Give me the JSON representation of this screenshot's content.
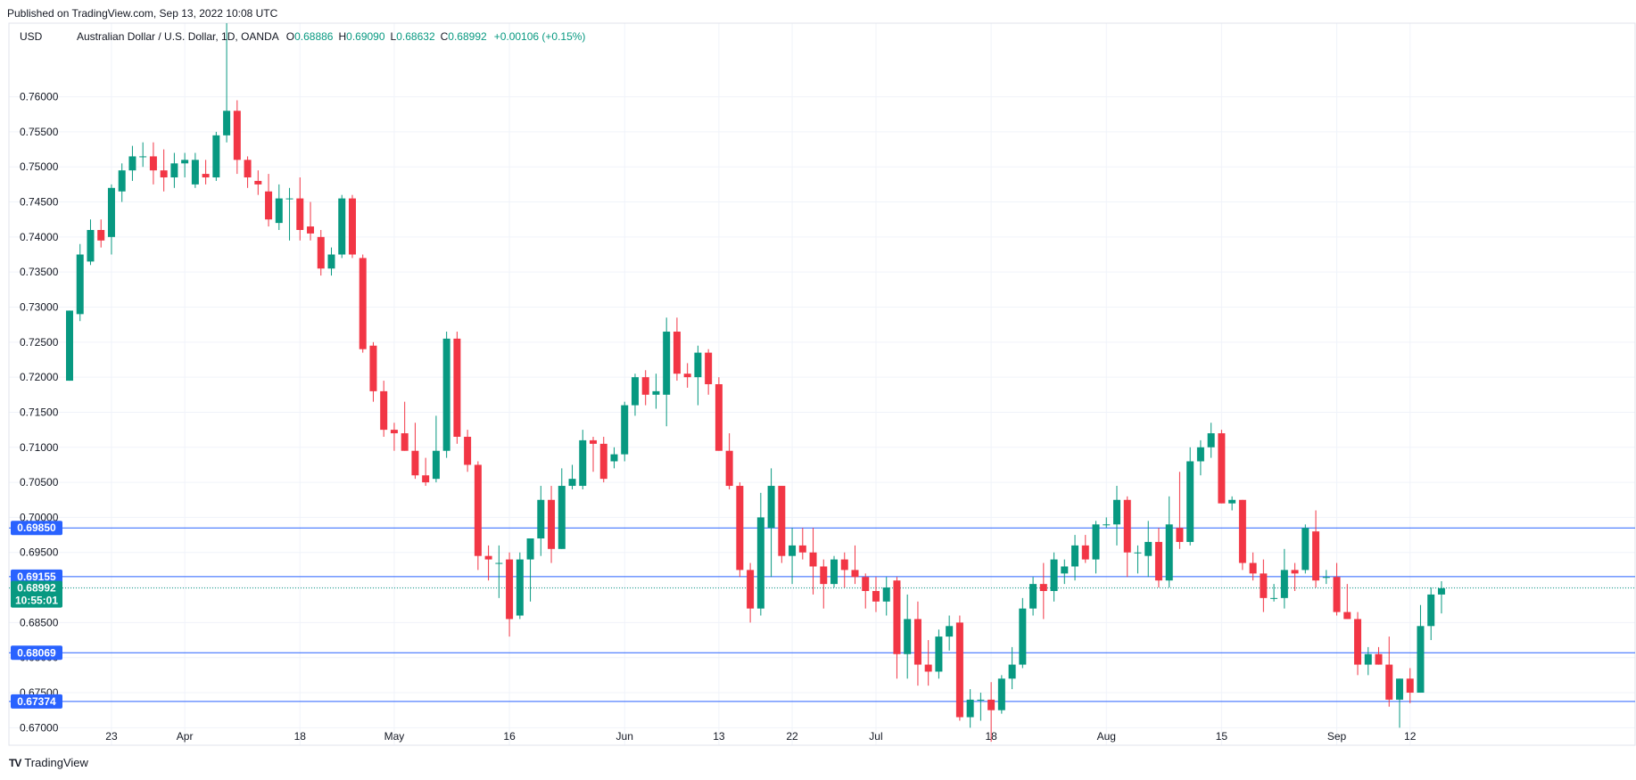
{
  "published": "Published on TradingView.com, Sep 13, 2022 10:08 UTC",
  "footer": {
    "brand": "TradingView",
    "mark": "TV"
  },
  "colors": {
    "up": "#089981",
    "down": "#f23645",
    "level_line": "#2962ff",
    "grid": "#f0f3fa",
    "badge_blue": "#2962ff",
    "badge_green": "#089981"
  },
  "header": {
    "currency": "USD",
    "symbol": "Australian Dollar / U.S. Dollar, 1D, OANDA",
    "o_label": "O",
    "o_value": "0.68886",
    "h_label": "H",
    "h_value": "0.69090",
    "l_label": "L",
    "l_value": "0.68632",
    "c_label": "C",
    "c_value": "0.68992",
    "change": "+0.00106 (+0.15%)"
  },
  "chart_data": {
    "type": "candlestick",
    "title": "Australian Dollar / U.S. Dollar, 1D, OANDA",
    "ylim": [
      0.6675,
      0.7705
    ],
    "y_ticks": [
      "0.67000",
      "0.67500",
      "0.68000",
      "0.68500",
      "0.69000",
      "0.69500",
      "0.70000",
      "0.70500",
      "0.71000",
      "0.71500",
      "0.72000",
      "0.72500",
      "0.73000",
      "0.73500",
      "0.74000",
      "0.74500",
      "0.75000",
      "0.75500",
      "0.76000"
    ],
    "x_labels": [
      {
        "label": "23",
        "index": 4
      },
      {
        "label": "Apr",
        "index": 11
      },
      {
        "label": "18",
        "index": 22
      },
      {
        "label": "May",
        "index": 31
      },
      {
        "label": "16",
        "index": 42
      },
      {
        "label": "Jun",
        "index": 53
      },
      {
        "label": "13",
        "index": 62
      },
      {
        "label": "22",
        "index": 69
      },
      {
        "label": "Jul",
        "index": 77
      },
      {
        "label": "18",
        "index": 88
      },
      {
        "label": "Aug",
        "index": 99
      },
      {
        "label": "15",
        "index": 110
      },
      {
        "label": "Sep",
        "index": 121
      },
      {
        "label": "12",
        "index": 128
      }
    ],
    "candles": [
      [
        0.7195,
        0.7295,
        0.7195,
        0.7295
      ],
      [
        0.729,
        0.739,
        0.728,
        0.7375
      ],
      [
        0.7365,
        0.7425,
        0.736,
        0.741
      ],
      [
        0.741,
        0.7425,
        0.7385,
        0.7395
      ],
      [
        0.74,
        0.7475,
        0.7375,
        0.747
      ],
      [
        0.7465,
        0.7505,
        0.745,
        0.7495
      ],
      [
        0.7495,
        0.753,
        0.748,
        0.7515
      ],
      [
        0.7515,
        0.7535,
        0.75,
        0.7515
      ],
      [
        0.7515,
        0.7535,
        0.7475,
        0.7495
      ],
      [
        0.7495,
        0.7525,
        0.7465,
        0.7485
      ],
      [
        0.7485,
        0.752,
        0.747,
        0.7505
      ],
      [
        0.7505,
        0.752,
        0.7485,
        0.751
      ],
      [
        0.7475,
        0.752,
        0.747,
        0.751
      ],
      [
        0.749,
        0.751,
        0.7475,
        0.7485
      ],
      [
        0.7485,
        0.755,
        0.748,
        0.7545
      ],
      [
        0.7545,
        0.7705,
        0.7535,
        0.758
      ],
      [
        0.758,
        0.7595,
        0.749,
        0.751
      ],
      [
        0.751,
        0.7515,
        0.747,
        0.7485
      ],
      [
        0.748,
        0.7495,
        0.746,
        0.7475
      ],
      [
        0.7465,
        0.749,
        0.7415,
        0.7425
      ],
      [
        0.742,
        0.7475,
        0.741,
        0.7455
      ],
      [
        0.7455,
        0.747,
        0.7395,
        0.7455
      ],
      [
        0.7455,
        0.7485,
        0.7395,
        0.741
      ],
      [
        0.7415,
        0.745,
        0.7395,
        0.7405
      ],
      [
        0.74,
        0.741,
        0.7345,
        0.7355
      ],
      [
        0.7355,
        0.7385,
        0.7345,
        0.7375
      ],
      [
        0.7375,
        0.746,
        0.737,
        0.7455
      ],
      [
        0.7455,
        0.746,
        0.737,
        0.7375
      ],
      [
        0.737,
        0.7375,
        0.7235,
        0.724
      ],
      [
        0.7245,
        0.725,
        0.7165,
        0.718
      ],
      [
        0.718,
        0.7195,
        0.7115,
        0.7125
      ],
      [
        0.7125,
        0.7135,
        0.7095,
        0.712
      ],
      [
        0.712,
        0.7165,
        0.7095,
        0.7095
      ],
      [
        0.7095,
        0.7135,
        0.7055,
        0.706
      ],
      [
        0.706,
        0.7085,
        0.7045,
        0.705
      ],
      [
        0.7055,
        0.7145,
        0.705,
        0.7095
      ],
      [
        0.7095,
        0.7265,
        0.7085,
        0.7255
      ],
      [
        0.7255,
        0.7265,
        0.7105,
        0.7115
      ],
      [
        0.7115,
        0.7125,
        0.7065,
        0.7075
      ],
      [
        0.7075,
        0.708,
        0.6925,
        0.6945
      ],
      [
        0.6945,
        0.696,
        0.691,
        0.694
      ],
      [
        0.6935,
        0.696,
        0.6885,
        0.6935
      ],
      [
        0.694,
        0.695,
        0.683,
        0.6855
      ],
      [
        0.686,
        0.695,
        0.6855,
        0.694
      ],
      [
        0.694,
        0.6965,
        0.688,
        0.697
      ],
      [
        0.697,
        0.7045,
        0.6945,
        0.7025
      ],
      [
        0.7025,
        0.7045,
        0.6935,
        0.6955
      ],
      [
        0.6955,
        0.707,
        0.6955,
        0.7045
      ],
      [
        0.7045,
        0.7075,
        0.704,
        0.7055
      ],
      [
        0.7045,
        0.7125,
        0.704,
        0.711
      ],
      [
        0.711,
        0.7115,
        0.7065,
        0.7105
      ],
      [
        0.7105,
        0.7115,
        0.705,
        0.7055
      ],
      [
        0.708,
        0.71,
        0.707,
        0.709
      ],
      [
        0.709,
        0.7165,
        0.708,
        0.716
      ],
      [
        0.716,
        0.7205,
        0.7145,
        0.72
      ],
      [
        0.72,
        0.721,
        0.716,
        0.7175
      ],
      [
        0.7175,
        0.7205,
        0.7155,
        0.718
      ],
      [
        0.7175,
        0.7285,
        0.713,
        0.7265
      ],
      [
        0.7265,
        0.7285,
        0.7195,
        0.7205
      ],
      [
        0.7205,
        0.722,
        0.7185,
        0.72
      ],
      [
        0.72,
        0.7245,
        0.716,
        0.7235
      ],
      [
        0.7235,
        0.724,
        0.7175,
        0.719
      ],
      [
        0.719,
        0.72,
        0.7095,
        0.7095
      ],
      [
        0.7095,
        0.712,
        0.704,
        0.7045
      ],
      [
        0.7045,
        0.705,
        0.6915,
        0.6925
      ],
      [
        0.6925,
        0.6935,
        0.685,
        0.687
      ],
      [
        0.687,
        0.7035,
        0.686,
        0.7
      ],
      [
        0.6985,
        0.707,
        0.6915,
        0.7045
      ],
      [
        0.7045,
        0.7045,
        0.6935,
        0.6945
      ],
      [
        0.6945,
        0.6985,
        0.6905,
        0.696
      ],
      [
        0.696,
        0.6985,
        0.694,
        0.695
      ],
      [
        0.695,
        0.6985,
        0.689,
        0.693
      ],
      [
        0.693,
        0.694,
        0.687,
        0.6905
      ],
      [
        0.6905,
        0.6945,
        0.69,
        0.694
      ],
      [
        0.694,
        0.695,
        0.69,
        0.6925
      ],
      [
        0.6925,
        0.696,
        0.6905,
        0.6915
      ],
      [
        0.6915,
        0.692,
        0.687,
        0.6895
      ],
      [
        0.6895,
        0.6915,
        0.6865,
        0.688
      ],
      [
        0.688,
        0.6915,
        0.686,
        0.69
      ],
      [
        0.691,
        0.6915,
        0.677,
        0.6805
      ],
      [
        0.6805,
        0.689,
        0.677,
        0.6855
      ],
      [
        0.6855,
        0.688,
        0.676,
        0.679
      ],
      [
        0.679,
        0.6825,
        0.676,
        0.678
      ],
      [
        0.678,
        0.684,
        0.677,
        0.683
      ],
      [
        0.683,
        0.686,
        0.681,
        0.6845
      ],
      [
        0.685,
        0.686,
        0.671,
        0.6715
      ],
      [
        0.6715,
        0.6755,
        0.67,
        0.674
      ],
      [
        0.674,
        0.675,
        0.671,
        0.674
      ],
      [
        0.674,
        0.6765,
        0.668,
        0.6725
      ],
      [
        0.6725,
        0.6775,
        0.672,
        0.677
      ],
      [
        0.677,
        0.6815,
        0.6755,
        0.679
      ],
      [
        0.679,
        0.6885,
        0.6785,
        0.687
      ],
      [
        0.687,
        0.6915,
        0.686,
        0.6905
      ],
      [
        0.6905,
        0.6935,
        0.6855,
        0.6895
      ],
      [
        0.6895,
        0.695,
        0.688,
        0.694
      ],
      [
        0.692,
        0.694,
        0.6905,
        0.693
      ],
      [
        0.693,
        0.6975,
        0.691,
        0.696
      ],
      [
        0.696,
        0.6975,
        0.6935,
        0.694
      ],
      [
        0.694,
        0.6995,
        0.692,
        0.699
      ],
      [
        0.699,
        0.7,
        0.6985,
        0.699
      ],
      [
        0.699,
        0.7045,
        0.696,
        0.7025
      ],
      [
        0.7025,
        0.703,
        0.6915,
        0.695
      ],
      [
        0.695,
        0.696,
        0.692,
        0.695
      ],
      [
        0.6945,
        0.6995,
        0.6915,
        0.6965
      ],
      [
        0.6965,
        0.6985,
        0.69,
        0.691
      ],
      [
        0.691,
        0.703,
        0.69,
        0.699
      ],
      [
        0.6985,
        0.7065,
        0.6955,
        0.6965
      ],
      [
        0.6965,
        0.71,
        0.696,
        0.708
      ],
      [
        0.708,
        0.711,
        0.706,
        0.71
      ],
      [
        0.71,
        0.7135,
        0.7085,
        0.712
      ],
      [
        0.712,
        0.7125,
        0.702,
        0.702
      ],
      [
        0.702,
        0.703,
        0.701,
        0.7025
      ],
      [
        0.7025,
        0.7025,
        0.6925,
        0.6935
      ],
      [
        0.6935,
        0.695,
        0.691,
        0.692
      ],
      [
        0.692,
        0.694,
        0.6865,
        0.6885
      ],
      [
        0.6885,
        0.6905,
        0.688,
        0.6885
      ],
      [
        0.6885,
        0.6955,
        0.687,
        0.6925
      ],
      [
        0.6925,
        0.6935,
        0.6895,
        0.692
      ],
      [
        0.6925,
        0.699,
        0.692,
        0.6985
      ],
      [
        0.698,
        0.701,
        0.69,
        0.691
      ],
      [
        0.6915,
        0.6925,
        0.6905,
        0.6915
      ],
      [
        0.6915,
        0.6935,
        0.686,
        0.6865
      ],
      [
        0.6865,
        0.6905,
        0.6855,
        0.6855
      ],
      [
        0.6855,
        0.6865,
        0.6775,
        0.679
      ],
      [
        0.679,
        0.6815,
        0.6775,
        0.6805
      ],
      [
        0.6805,
        0.6815,
        0.679,
        0.679
      ],
      [
        0.679,
        0.683,
        0.673,
        0.674
      ],
      [
        0.674,
        0.677,
        0.67,
        0.677
      ],
      [
        0.677,
        0.6785,
        0.6735,
        0.675
      ],
      [
        0.675,
        0.6875,
        0.675,
        0.6845
      ],
      [
        0.6845,
        0.69,
        0.6825,
        0.689
      ],
      [
        0.689,
        0.6909,
        0.6863,
        0.6899
      ]
    ],
    "levels": [
      {
        "price": 0.6985,
        "label": "0.69850"
      },
      {
        "price": 0.69155,
        "label": "0.69155"
      },
      {
        "price": 0.68069,
        "label": "0.68069"
      },
      {
        "price": 0.67374,
        "label": "0.67374"
      }
    ],
    "current": {
      "price": 0.68992,
      "label": "0.68992",
      "countdown": "10:55:01"
    }
  }
}
